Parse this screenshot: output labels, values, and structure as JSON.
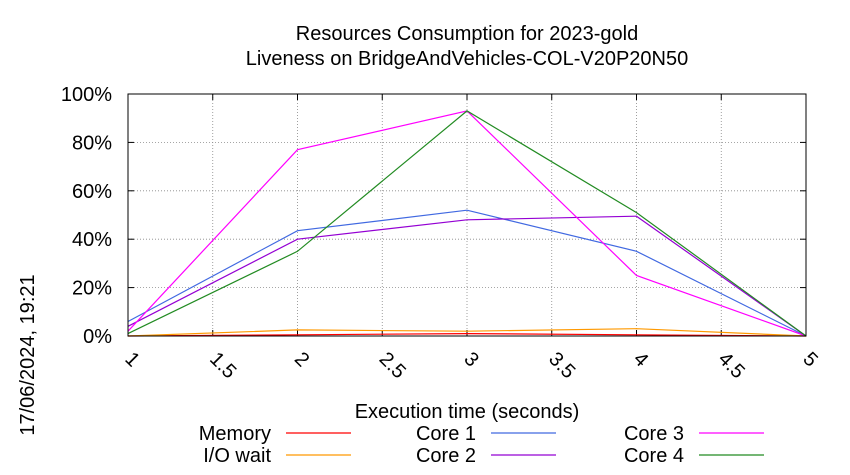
{
  "chart_data": {
    "type": "line",
    "title_line1": "Resources Consumption for 2023-gold",
    "title_line2": "Liveness on BridgeAndVehicles-COL-V20P20N50",
    "xlabel": "Execution time (seconds)",
    "ylabel": "",
    "side_label": "17/06/2024, 19:21",
    "xlim": [
      1,
      5
    ],
    "ylim": [
      0,
      100
    ],
    "x_ticks": [
      1,
      1.5,
      2,
      2.5,
      3,
      3.5,
      4,
      4.5,
      5
    ],
    "x_tick_labels": [
      "1",
      "1.5",
      "2",
      "2.5",
      "3",
      "3.5",
      "4",
      "4.5",
      "5"
    ],
    "y_ticks": [
      0,
      20,
      40,
      60,
      80,
      100
    ],
    "y_tick_labels": [
      "0%",
      "20%",
      "40%",
      "60%",
      "80%",
      "100%"
    ],
    "grid": true,
    "legend_position": "bottom",
    "series": [
      {
        "name": "Memory",
        "color": "#ff0000",
        "x": [
          1,
          2,
          3,
          4,
          5
        ],
        "y": [
          0,
          0.5,
          1,
          0.5,
          0
        ]
      },
      {
        "name": "I/O wait",
        "color": "#ff9900",
        "x": [
          1,
          2,
          3,
          4,
          5
        ],
        "y": [
          0,
          2.5,
          2,
          3,
          0
        ]
      },
      {
        "name": "Core 1",
        "color": "#4169e1",
        "x": [
          1,
          2,
          3,
          4,
          5
        ],
        "y": [
          6,
          43.5,
          52,
          35,
          0
        ]
      },
      {
        "name": "Core 2",
        "color": "#9400d3",
        "x": [
          1,
          2,
          3,
          4,
          5
        ],
        "y": [
          4,
          40,
          48,
          49.5,
          0
        ]
      },
      {
        "name": "Core 3",
        "color": "#ff00ff",
        "x": [
          1,
          2,
          3,
          4,
          5
        ],
        "y": [
          2,
          77,
          93,
          25,
          0
        ]
      },
      {
        "name": "Core 4",
        "color": "#228b22",
        "x": [
          1,
          2,
          3,
          4,
          5
        ],
        "y": [
          1,
          35,
          93,
          51,
          0
        ]
      }
    ]
  }
}
